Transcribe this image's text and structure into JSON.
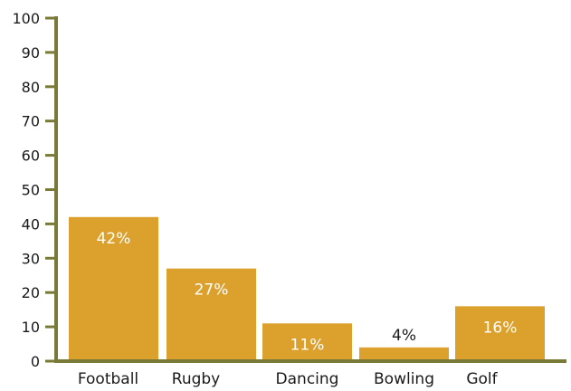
{
  "colors": {
    "axis": "#7a7a38",
    "bar": "#dba12c",
    "label_inside": "#ffffff",
    "label_outside": "#1a1a1a"
  },
  "chart_data": {
    "type": "bar",
    "title": "",
    "xlabel": "",
    "ylabel": "",
    "categories": [
      "Football",
      "Rugby",
      "Dancing",
      "Bowling",
      "Golf"
    ],
    "values": [
      42,
      27,
      11,
      4,
      16
    ],
    "data_labels": [
      "42%",
      "27%",
      "11%",
      "4%",
      "16%"
    ],
    "ylim": [
      0,
      100
    ],
    "yticks": [
      0,
      10,
      20,
      30,
      40,
      50,
      60,
      70,
      80,
      90,
      100
    ],
    "grid": false,
    "legend": "none"
  }
}
